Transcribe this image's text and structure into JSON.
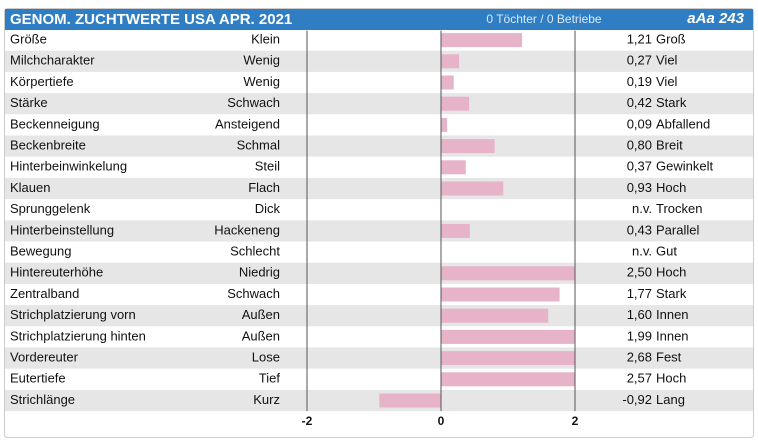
{
  "chart_data": {
    "type": "bar",
    "title": "GENOM. ZUCHTWERTE USA APR. 2021",
    "subtitle": "0 Töchter / 0 Betriebe",
    "badge": "aAa 243",
    "categories": [
      "Größe",
      "Milchcharakter",
      "Körpertiefe",
      "Stärke",
      "Beckenneigung",
      "Beckenbreite",
      "Hinterbeinwinkelung",
      "Klauen",
      "Sprunggelenk",
      "Hinterbeinstellung",
      "Bewegung",
      "Hintereuterhöhe",
      "Zentralband",
      "Strichplatzierung vorn",
      "Strichplatzierung hinten",
      "Vordereuter",
      "Eutertiefe",
      "Strichlänge"
    ],
    "low_labels": [
      "Klein",
      "Wenig",
      "Wenig",
      "Schwach",
      "Ansteigend",
      "Schmal",
      "Steil",
      "Flach",
      "Dick",
      "Hackeneng",
      "Schlecht",
      "Niedrig",
      "Schwach",
      "Außen",
      "Außen",
      "Lose",
      "Tief",
      "Kurz"
    ],
    "high_labels": [
      "Groß",
      "Viel",
      "Viel",
      "Stark",
      "Abfallend",
      "Breit",
      "Gewinkelt",
      "Hoch",
      "Trocken",
      "Parallel",
      "Gut",
      "Hoch",
      "Stark",
      "Innen",
      "Innen",
      "Fest",
      "Hoch",
      "Lang"
    ],
    "values": [
      1.21,
      0.27,
      0.19,
      0.42,
      0.09,
      0.8,
      0.37,
      0.93,
      null,
      0.43,
      null,
      2.5,
      1.77,
      1.6,
      1.99,
      2.68,
      2.57,
      -0.92
    ],
    "value_labels": [
      "1,21",
      "0,27",
      "0,19",
      "0,42",
      "0,09",
      "0,80",
      "0,37",
      "0,93",
      "n.v.",
      "0,43",
      "n.v.",
      "2,50",
      "1,77",
      "1,60",
      "1,99",
      "2,68",
      "2,57",
      "-0,92"
    ],
    "xlim": [
      -2,
      2
    ],
    "xticks": [
      -2,
      0,
      2
    ],
    "color": "#e6b3c9",
    "grid": true
  }
}
